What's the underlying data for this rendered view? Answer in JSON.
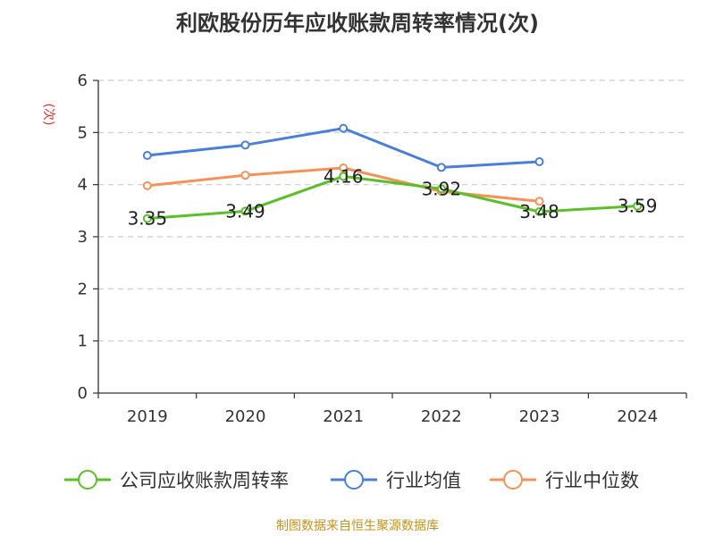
{
  "chart_data": {
    "type": "line",
    "title": "利欧股份历年应收账款周转率情况(次)",
    "ylabel": "(次)",
    "xlabel": "",
    "categories": [
      "2019",
      "2020",
      "2021",
      "2022",
      "2023",
      "2024"
    ],
    "ylim": [
      0,
      6
    ],
    "yticks": [
      "0",
      "1",
      "2",
      "3",
      "4",
      "5",
      "6"
    ],
    "grid": true,
    "legend_position": "bottom",
    "series": [
      {
        "name": "公司应收账款周转率",
        "color": "#5ac02a",
        "values": [
          3.35,
          3.49,
          4.16,
          3.92,
          3.48,
          3.59
        ],
        "labels": [
          "3.35",
          "3.49",
          "4.16",
          "3.92",
          "3.48",
          "3.59"
        ]
      },
      {
        "name": "行业均值",
        "color": "#4a7fd8",
        "values": [
          4.56,
          4.76,
          5.08,
          4.33,
          4.44,
          null
        ]
      },
      {
        "name": "行业中位数",
        "color": "#f4925a",
        "values": [
          3.98,
          4.18,
          4.32,
          3.87,
          3.68,
          null
        ]
      }
    ],
    "source": "制图数据来自恒生聚源数据库"
  }
}
